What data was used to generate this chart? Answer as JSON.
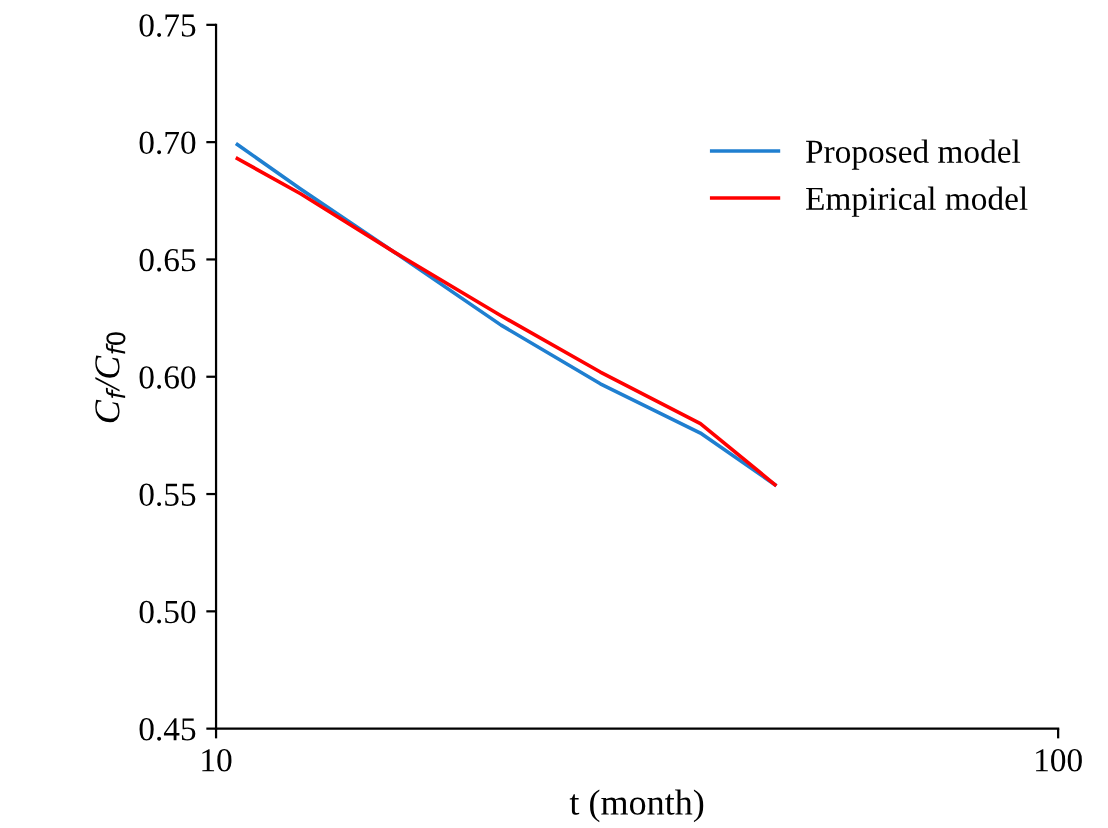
{
  "chart_data": {
    "type": "line",
    "xlabel": "t (month)",
    "ylabel": "C$_{f}$/C$_{f0}$",
    "log": "x",
    "xlim": [
      10,
      100
    ],
    "xticks": [
      10,
      100
    ],
    "ylim": [
      0.45,
      0.75
    ],
    "yticks": [
      0.45,
      {
        "value": 0.5,
        "label": "0.50"
      },
      0.55,
      {
        "value": 0.6,
        "label": "0.60"
      },
      0.65,
      {
        "value": 0.7,
        "label": "0.70"
      },
      0.75
    ],
    "grid": false,
    "legend": "top right",
    "marker": "none",
    "line_style": "solid",
    "series": [
      {
        "name": "Proposed model",
        "color": "#1f7fd0",
        "x": [
          10.6,
          12.6,
          16.3,
          21.8,
          28.6,
          37.6,
          46.1
        ],
        "values": [
          0.699,
          0.68,
          0.653,
          0.622,
          0.597,
          0.576,
          0.554
        ]
      },
      {
        "name": "Empirical model",
        "color": "#ff0000",
        "x": [
          10.6,
          12.6,
          16.3,
          21.8,
          28.6,
          37.6,
          46.1
        ],
        "values": [
          0.693,
          0.678,
          0.653,
          0.626,
          0.602,
          0.58,
          0.554
        ]
      }
    ]
  }
}
